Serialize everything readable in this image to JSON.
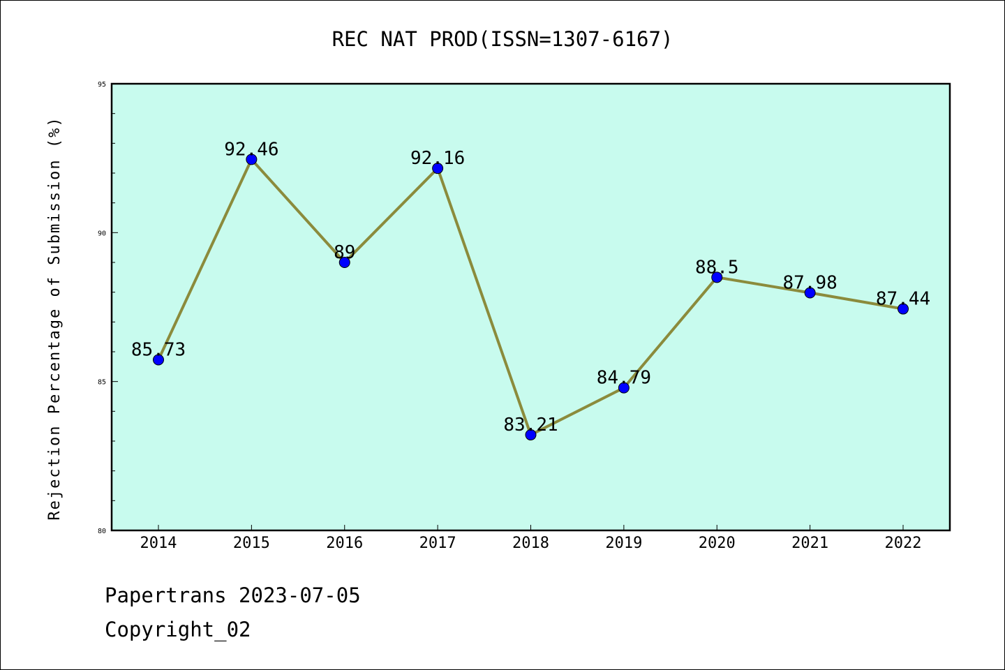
{
  "chart_data": {
    "type": "line",
    "title": "REC NAT PROD(ISSN=1307-6167)",
    "ylabel": "Rejection Percentage of Submission (%)",
    "xlabel": "",
    "categories": [
      "2014",
      "2015",
      "2016",
      "2017",
      "2018",
      "2019",
      "2020",
      "2021",
      "2022"
    ],
    "series": [
      {
        "values": [
          85.73,
          92.46,
          89,
          92.16,
          83.21,
          84.79,
          88.5,
          87.98,
          87.44
        ],
        "data_labels": [
          "85.73",
          "92.46",
          "89",
          "92.16",
          "83.21",
          "84.79",
          "88.5",
          "87.98",
          "87.44"
        ]
      }
    ],
    "ylim": [
      80,
      95
    ],
    "yticks": [
      "80",
      "85",
      "90",
      "95"
    ],
    "grid": false,
    "legend": "none",
    "colors": {
      "plot_background": "#c8fbee",
      "line": "#8b8b3c",
      "marker": "#0000ff"
    }
  },
  "footer": {
    "line1": "Papertrans 2023-07-05",
    "line2": "Copyright_02"
  }
}
